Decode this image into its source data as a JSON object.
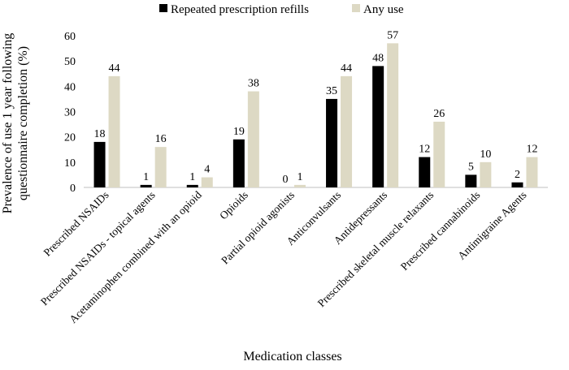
{
  "chart_data": {
    "type": "bar",
    "title": "",
    "xlabel": "Medication classes",
    "ylabel_line1": "Prevalence of use 1 year following",
    "ylabel_line2": "questionnaire completion (%)",
    "ylim": [
      0,
      60
    ],
    "yticks": [
      0,
      10,
      20,
      30,
      40,
      50,
      60
    ],
    "grid": false,
    "legend_position": "top",
    "categories": [
      "Prescribed NSAIDs",
      "Prescribed NSAIDs - topical agents",
      "Acetaminophen combined with an opioid",
      "Opioids",
      "Partial opioid agonists",
      "Anticonvulsants",
      "Antidepressants",
      "Prescribed skeletal muscle relaxants",
      "Prescribed cannabinoids",
      "Antimigraine Agents"
    ],
    "series": [
      {
        "name": "Repeated prescription refills",
        "color": "#000000",
        "values": [
          18,
          1,
          1,
          19,
          0,
          35,
          48,
          12,
          5,
          2
        ]
      },
      {
        "name": "Any use",
        "color": "#ddd9c4",
        "values": [
          44,
          16,
          4,
          38,
          1,
          44,
          57,
          26,
          10,
          12
        ]
      }
    ]
  }
}
